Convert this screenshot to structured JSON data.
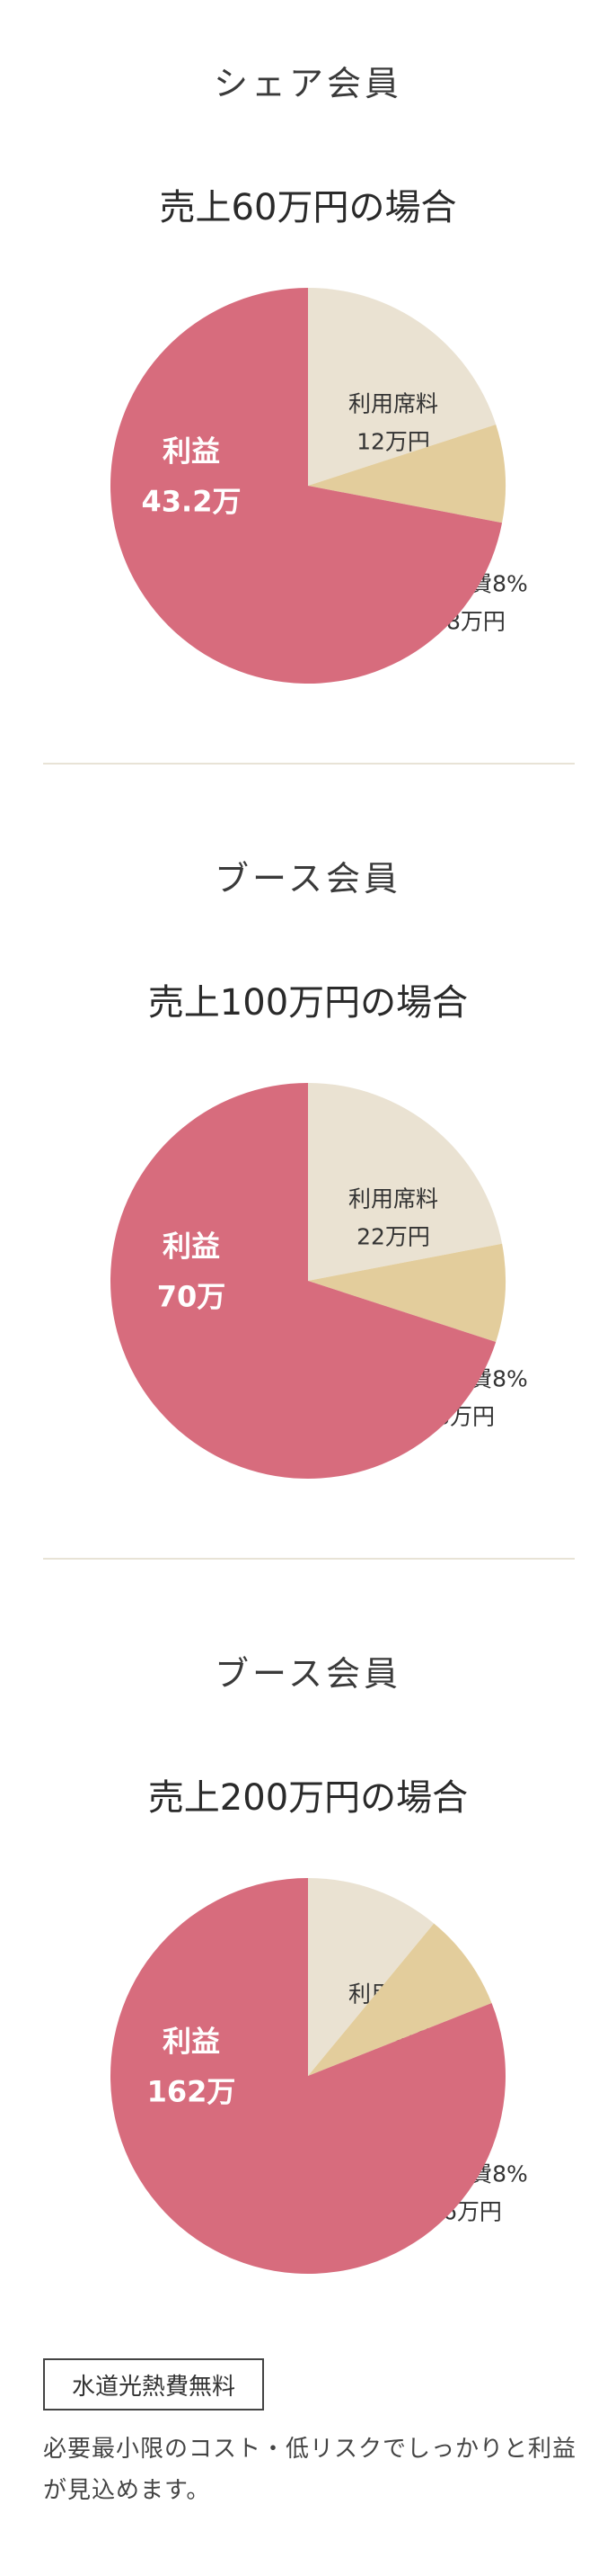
{
  "colors": {
    "profit": "#d76c7d",
    "fee": "#eae2d2",
    "material": "#e3cd9c",
    "divider": "#e8e3d6"
  },
  "sections": [
    {
      "member_type": "シェア会員",
      "sales_title": "売上60万円の場合"
    },
    {
      "member_type": "ブース会員",
      "sales_title": "売上100万円の場合"
    },
    {
      "member_type": "ブース会員",
      "sales_title": "売上200万円の場合"
    }
  ],
  "chart_data": [
    {
      "type": "pie",
      "title": "売上60万円の場合",
      "total": 60,
      "slices": [
        {
          "name": "利用席料",
          "label": "利用席料",
          "value_label": "12万円",
          "value": 12,
          "color": "#eae2d2"
        },
        {
          "name": "原材料費8%",
          "label": "原材料費8%",
          "value_label": "4.8万円",
          "value": 4.8,
          "color": "#e3cd9c"
        },
        {
          "name": "利益",
          "label": "利益",
          "value_label": "43.2万",
          "value": 43.2,
          "color": "#d76c7d"
        }
      ]
    },
    {
      "type": "pie",
      "title": "売上100万円の場合",
      "total": 100,
      "slices": [
        {
          "name": "利用席料",
          "label": "利用席料",
          "value_label": "22万円",
          "value": 22,
          "color": "#eae2d2"
        },
        {
          "name": "原材料費8%",
          "label": "原材料費8%",
          "value_label": "8万円",
          "value": 8,
          "color": "#e3cd9c"
        },
        {
          "name": "利益",
          "label": "利益",
          "value_label": "70万",
          "value": 70,
          "color": "#d76c7d"
        }
      ]
    },
    {
      "type": "pie",
      "title": "売上200万円の場合",
      "total": 200,
      "slices": [
        {
          "name": "利用席料",
          "label": "利用席料",
          "value_label": "22万円",
          "value": 22,
          "color": "#eae2d2"
        },
        {
          "name": "原材料費8%",
          "label": "原材料費8%",
          "value_label": "16万円",
          "value": 16,
          "color": "#e3cd9c"
        },
        {
          "name": "利益",
          "label": "利益",
          "value_label": "162万",
          "value": 162,
          "color": "#d76c7d"
        }
      ]
    }
  ],
  "note": {
    "badge": "水道光熱費無料",
    "text": "必要最小限のコスト・低リスクでしっかりと利益が見込めます。"
  }
}
